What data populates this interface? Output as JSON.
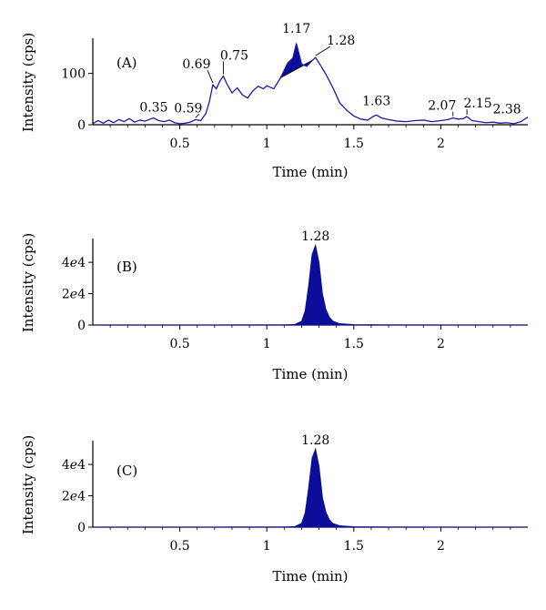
{
  "colors": {
    "trace": "#1a1aa8",
    "fill": "#0d0d9c",
    "axis": "#000000"
  },
  "chart_data": [
    {
      "type": "line",
      "panel_label": "(A)",
      "xlabel": "Time (min)",
      "ylabel": "Intensity (cps)",
      "xlim": [
        0,
        2.5
      ],
      "ylim": [
        0,
        165
      ],
      "x_ticks": [
        0.5,
        1,
        1.5,
        2
      ],
      "x_tick_labels": [
        "0.5",
        "1",
        "1.5",
        "2"
      ],
      "y_ticks": [
        0,
        100
      ],
      "y_tick_labels": [
        "0",
        "100"
      ],
      "grid": false,
      "series": [
        {
          "x": [
            0.0,
            0.03,
            0.06,
            0.09,
            0.12,
            0.15,
            0.18,
            0.21,
            0.24,
            0.27,
            0.3,
            0.33,
            0.35,
            0.38,
            0.41,
            0.44,
            0.47,
            0.5,
            0.53,
            0.56,
            0.59,
            0.62,
            0.65,
            0.67,
            0.69,
            0.71,
            0.73,
            0.75,
            0.77,
            0.8,
            0.83,
            0.86,
            0.89,
            0.92,
            0.95,
            0.98,
            1.0,
            1.04,
            1.08,
            1.12,
            1.15,
            1.17,
            1.2,
            1.23,
            1.26,
            1.28,
            1.31,
            1.34,
            1.38,
            1.42,
            1.46,
            1.5,
            1.54,
            1.58,
            1.61,
            1.63,
            1.66,
            1.7,
            1.75,
            1.8,
            1.85,
            1.9,
            1.95,
            2.0,
            2.04,
            2.07,
            2.1,
            2.13,
            2.15,
            2.18,
            2.22,
            2.26,
            2.3,
            2.34,
            2.38,
            2.42,
            2.46,
            2.5
          ],
          "y": [
            2,
            8,
            3,
            9,
            4,
            10,
            6,
            12,
            5,
            9,
            7,
            11,
            13,
            8,
            6,
            9,
            4,
            2,
            3,
            5,
            10,
            8,
            22,
            45,
            78,
            70,
            85,
            95,
            80,
            62,
            72,
            58,
            52,
            66,
            75,
            70,
            76,
            70,
            92,
            120,
            130,
            158,
            118,
            114,
            125,
            131,
            115,
            98,
            72,
            42,
            28,
            17,
            11,
            9,
            16,
            19,
            13,
            10,
            7,
            6,
            8,
            9,
            6,
            8,
            10,
            13,
            11,
            12,
            16,
            8,
            6,
            4,
            5,
            3,
            4,
            2,
            6,
            15
          ]
        }
      ],
      "filled_peak": {
        "x_start": 1.08,
        "x_end": 1.26,
        "apex": 1.17
      },
      "peak_labels": [
        {
          "x": 0.35,
          "y": 13,
          "text": "0.35"
        },
        {
          "x": 0.59,
          "y": 10,
          "text": "0.59"
        },
        {
          "x": 0.69,
          "y": 78,
          "text": "0.69"
        },
        {
          "x": 0.75,
          "y": 95,
          "text": "0.75"
        },
        {
          "x": 1.17,
          "y": 158,
          "text": "1.17"
        },
        {
          "x": 1.28,
          "y": 131,
          "text": "1.28"
        },
        {
          "x": 1.63,
          "y": 19,
          "text": "1.63"
        },
        {
          "x": 2.07,
          "y": 13,
          "text": "2.07"
        },
        {
          "x": 2.15,
          "y": 16,
          "text": "2.15"
        },
        {
          "x": 2.38,
          "y": 4,
          "text": "2.38"
        }
      ]
    },
    {
      "type": "area",
      "panel_label": "(B)",
      "xlabel": "Time (min)",
      "ylabel": "Intensity (cps)",
      "xlim": [
        0,
        2.5
      ],
      "ylim": [
        0,
        54000
      ],
      "x_ticks": [
        0.5,
        1,
        1.5,
        2
      ],
      "x_tick_labels": [
        "0.5",
        "1",
        "1.5",
        "2"
      ],
      "y_ticks": [
        0,
        20000,
        40000
      ],
      "y_tick_labels": [
        "0",
        "2e4",
        "4e4"
      ],
      "grid": false,
      "series": [
        {
          "x": [
            0.0,
            0.6,
            0.9,
            1.1,
            1.16,
            1.2,
            1.22,
            1.24,
            1.26,
            1.28,
            1.3,
            1.32,
            1.34,
            1.36,
            1.38,
            1.42,
            1.5,
            1.7,
            2.5
          ],
          "y": [
            0,
            0,
            150,
            150,
            400,
            2500,
            9000,
            25000,
            45000,
            51000,
            40000,
            20000,
            10000,
            5000,
            2500,
            900,
            300,
            100,
            0
          ]
        }
      ],
      "peak_labels": [
        {
          "x": 1.28,
          "y": 51000,
          "text": "1.28"
        }
      ]
    },
    {
      "type": "area",
      "panel_label": "(C)",
      "xlabel": "Time (min)",
      "ylabel": "Intensity (cps)",
      "xlim": [
        0,
        2.5
      ],
      "ylim": [
        0,
        54000
      ],
      "x_ticks": [
        0.5,
        1,
        1.5,
        2
      ],
      "x_tick_labels": [
        "0.5",
        "1",
        "1.5",
        "2"
      ],
      "y_ticks": [
        0,
        20000,
        40000
      ],
      "y_tick_labels": [
        "0",
        "2e4",
        "4e4"
      ],
      "grid": false,
      "series": [
        {
          "x": [
            0.0,
            0.6,
            0.9,
            1.1,
            1.16,
            1.2,
            1.22,
            1.24,
            1.26,
            1.28,
            1.3,
            1.32,
            1.34,
            1.36,
            1.38,
            1.42,
            1.5,
            1.7,
            2.5
          ],
          "y": [
            0,
            0,
            150,
            150,
            400,
            2500,
            9000,
            25000,
            44000,
            50000,
            39000,
            19000,
            9500,
            4800,
            2400,
            900,
            300,
            100,
            0
          ]
        }
      ],
      "peak_labels": [
        {
          "x": 1.28,
          "y": 50000,
          "text": "1.28"
        }
      ]
    }
  ]
}
